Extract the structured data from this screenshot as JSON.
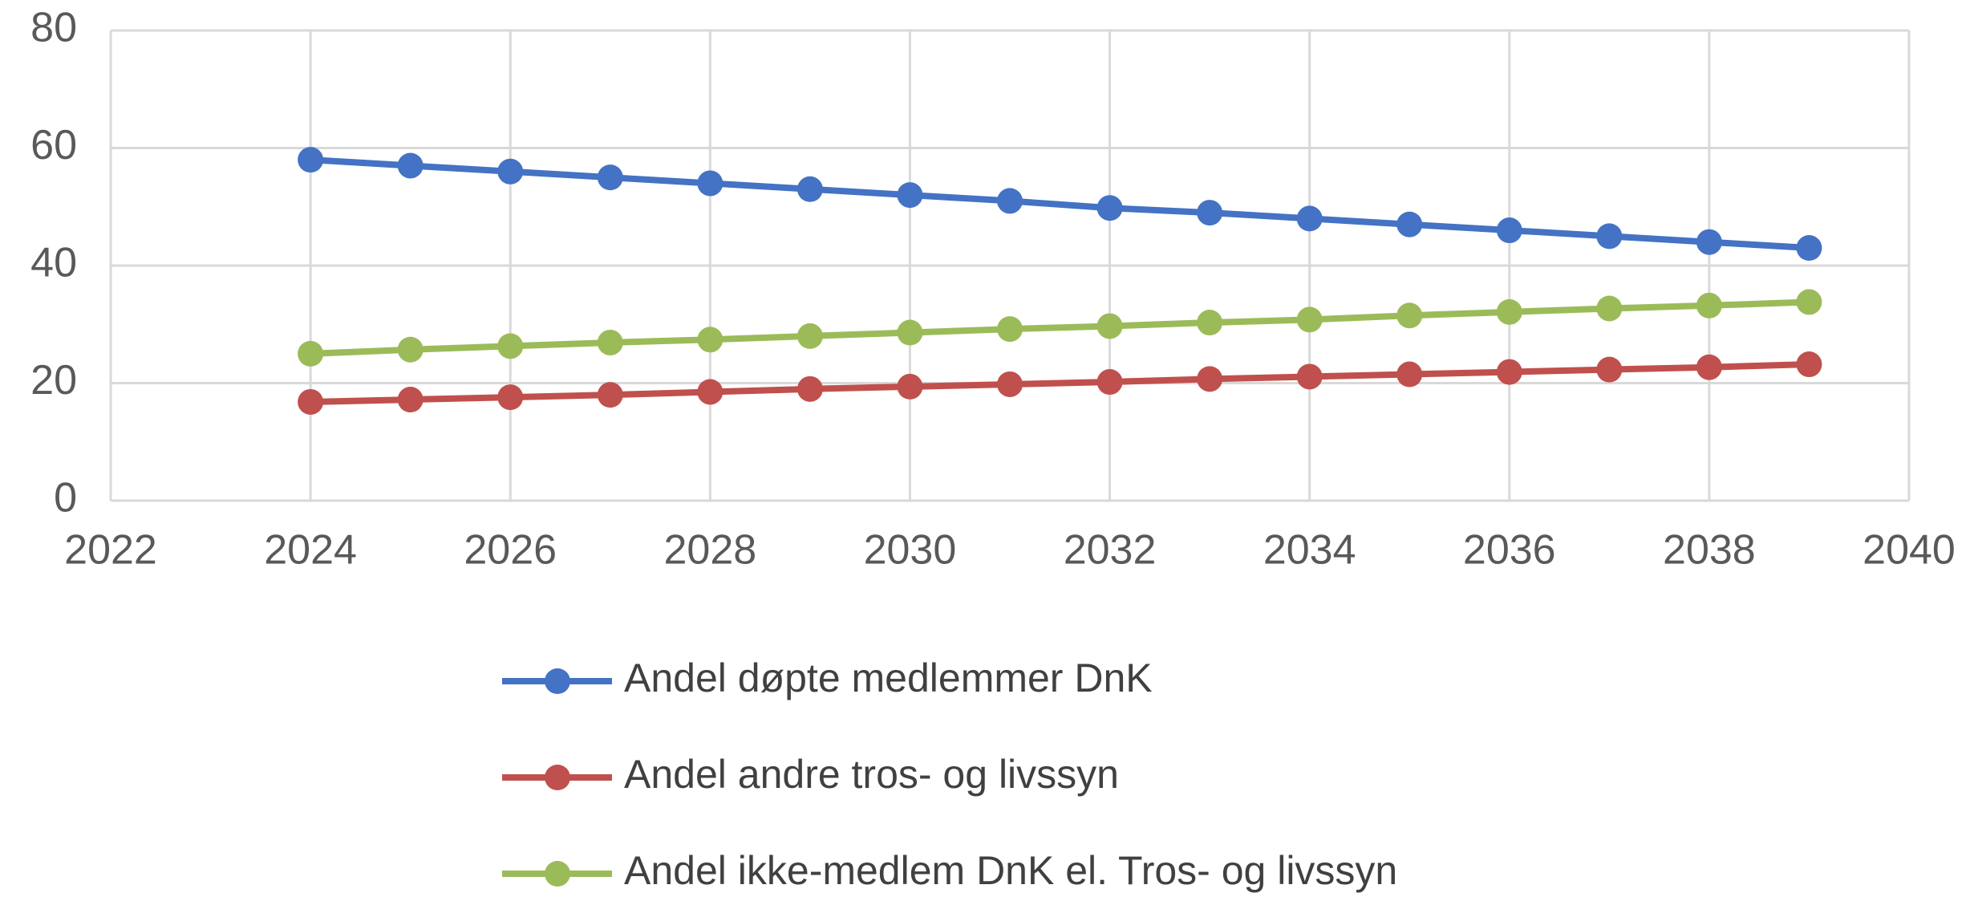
{
  "chart_data": {
    "type": "line",
    "x": [
      2024,
      2025,
      2026,
      2027,
      2028,
      2029,
      2030,
      2031,
      2032,
      2033,
      2034,
      2035,
      2036,
      2037,
      2038,
      2039
    ],
    "series": [
      {
        "name": "Andel døpte medlemmer DnK",
        "color": "#4472c4",
        "values": [
          58,
          57,
          56,
          55,
          54,
          53,
          52,
          51,
          49.8,
          49,
          48,
          47,
          46,
          45,
          44,
          43
        ]
      },
      {
        "name": "Andel andre tros- og livssyn",
        "color": "#c0504d",
        "values": [
          16.8,
          17.2,
          17.6,
          18,
          18.5,
          19,
          19.4,
          19.8,
          20.2,
          20.7,
          21.1,
          21.5,
          21.9,
          22.3,
          22.7,
          23.2
        ]
      },
      {
        "name": "Andel ikke-medlem DnK el. Tros- og livssyn",
        "color": "#9bbb59",
        "values": [
          25,
          25.7,
          26.3,
          26.9,
          27.4,
          28,
          28.6,
          29.2,
          29.7,
          30.3,
          30.8,
          31.5,
          32.1,
          32.7,
          33.2,
          33.8
        ]
      }
    ],
    "xlim": [
      2022,
      2040
    ],
    "xticks": [
      2022,
      2024,
      2026,
      2028,
      2030,
      2032,
      2034,
      2036,
      2038,
      2040
    ],
    "ylim": [
      0,
      80
    ],
    "yticks": [
      0,
      20,
      40,
      60,
      80
    ],
    "grid": true
  }
}
